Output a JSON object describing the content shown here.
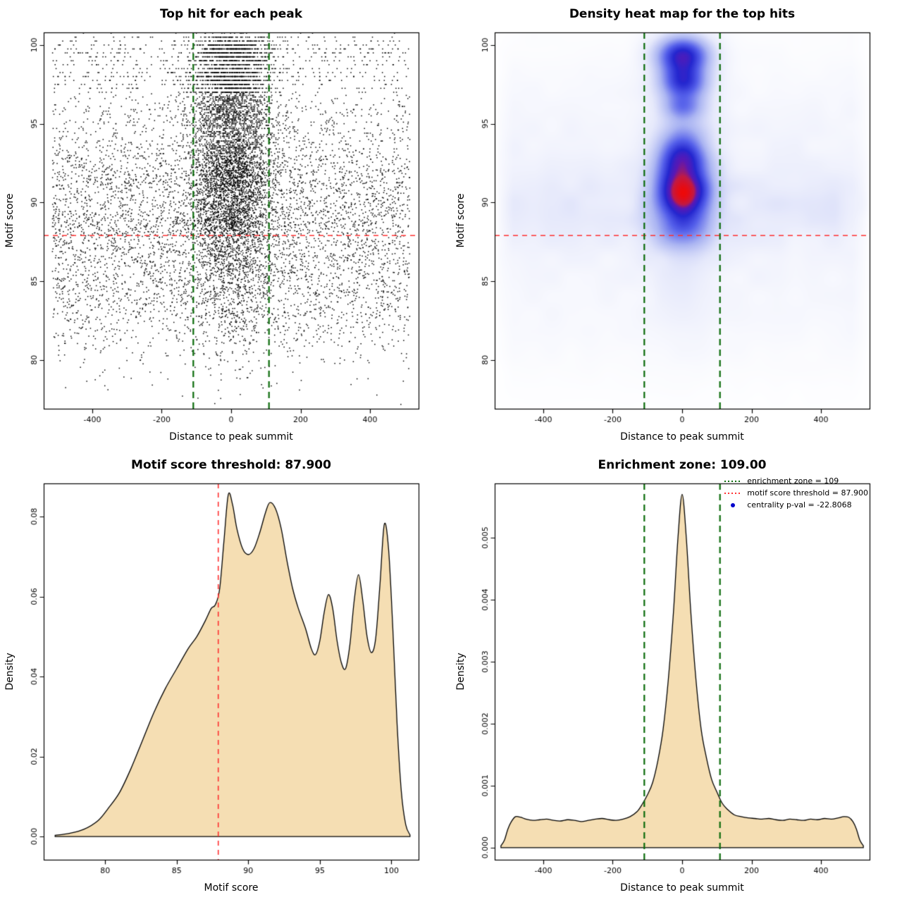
{
  "figure": {
    "background": "#ffffff"
  },
  "chart_data": [
    {
      "type": "scatter",
      "title": "Top hit for each peak",
      "xlabel": "Distance to peak summit",
      "ylabel": "Motif score",
      "xlim": [
        -540,
        540
      ],
      "ylim": [
        76.9,
        100.8
      ],
      "x_ticks": [
        -400,
        -200,
        0,
        200,
        400
      ],
      "x_tick_labels": [
        "-400",
        "-200",
        "0",
        "200",
        "400"
      ],
      "y_ticks": [
        80,
        85,
        90,
        95,
        100
      ],
      "y_tick_labels": [
        "80",
        "85",
        "90",
        "95",
        "100"
      ],
      "n_points": 12000,
      "seed": 1337,
      "point_color": "#000000",
      "point_size": 1.5,
      "central_sd": 58,
      "central_fraction": {
        "base": 0.18,
        "span": 0.55,
        "y_start": 84,
        "y_range": 12
      },
      "score_distribution_ref": 2,
      "threshold_line": {
        "y": 87.9,
        "color": "#ff3030",
        "dash": [
          7,
          6
        ],
        "width": 1.6
      },
      "zone_lines": {
        "x": [
          -109,
          109
        ],
        "color": "#0b6b0b",
        "dash": [
          9,
          6
        ],
        "width": 2.2
      }
    },
    {
      "type": "heatmap",
      "title": "Density heat map for the top hits",
      "xlabel": "Distance to peak summit",
      "ylabel": "Motif score",
      "xlim": [
        -540,
        540
      ],
      "ylim": [
        76.9,
        100.8
      ],
      "x_ticks": [
        -400,
        -200,
        0,
        200,
        400
      ],
      "x_tick_labels": [
        "-400",
        "-200",
        "0",
        "200",
        "400"
      ],
      "y_ticks": [
        80,
        85,
        90,
        95,
        100
      ],
      "y_tick_labels": [
        "80",
        "85",
        "90",
        "95",
        "100"
      ],
      "bands": [
        {
          "y": 90.6,
          "sy": 5.6,
          "w": 0.13
        },
        {
          "y": 89.6,
          "sy": 1.6,
          "w": 0.1
        },
        {
          "y": 82.5,
          "sy": 2.5,
          "w": 0.025
        }
      ],
      "column": {
        "x": 0,
        "sx": 65,
        "y": 92.5,
        "sy": 5.5,
        "w": 0.33
      },
      "blobs": [
        [
          0,
          99.4,
          52,
          0.8,
          1.35
        ],
        [
          2,
          97.7,
          46,
          0.75,
          1.05
        ],
        [
          0,
          96.1,
          40,
          0.55,
          0.55
        ],
        [
          -4,
          91.6,
          52,
          1.15,
          1.05
        ],
        [
          6,
          90.5,
          48,
          0.8,
          0.85
        ],
        [
          0,
          88.7,
          60,
          1.05,
          0.65
        ],
        [
          0,
          93.9,
          44,
          0.8,
          0.4
        ],
        [
          2,
          92.9,
          44,
          0.7,
          0.5
        ]
      ],
      "noise": {
        "seed": 7,
        "grid": 21,
        "amp": 0.6
      },
      "edge_fade": {
        "start": 537,
        "span": 50,
        "pow": 0.7
      },
      "gamma": 0.9,
      "colormap": [
        [
          0,
          "#ffffff"
        ],
        [
          0.14,
          "#e6e9fb"
        ],
        [
          0.33,
          "#aab4f2"
        ],
        [
          0.52,
          "#5560ea"
        ],
        [
          0.68,
          "#2426cf"
        ],
        [
          0.8,
          "#5a18b4"
        ],
        [
          0.875,
          "#c01a45"
        ],
        [
          1,
          "#ee0909"
        ]
      ],
      "threshold_line": {
        "y": 87.9,
        "color": "#ff3030",
        "dash": [
          7,
          6
        ],
        "width": 1.6
      },
      "zone_lines": {
        "x": [
          -109,
          109
        ],
        "color": "#0b6b0b",
        "dash": [
          9,
          6
        ],
        "width": 2.2
      }
    },
    {
      "type": "area",
      "title": "Motif score threshold: 87.900",
      "xlabel": "Motif score",
      "ylabel": "Density",
      "xlim": [
        75.7,
        101.9
      ],
      "ylim": [
        -0.0058,
        0.0883
      ],
      "x_ticks": [
        80,
        85,
        90,
        95,
        100
      ],
      "x_tick_labels": [
        "80",
        "85",
        "90",
        "95",
        "100"
      ],
      "y_ticks": [
        0,
        0.02,
        0.04,
        0.06,
        0.08
      ],
      "y_tick_labels": [
        "0.00",
        "0.02",
        "0.04",
        "0.06",
        "0.08"
      ],
      "fill": "#f5deb3",
      "stroke": "#000000",
      "x": [
        76.5,
        77.5,
        78.5,
        79.5,
        80.2,
        81,
        81.8,
        82.6,
        83.4,
        84.2,
        85,
        85.8,
        86.4,
        87,
        87.4,
        87.7,
        88,
        88.3,
        88.6,
        88.9,
        89.2,
        89.6,
        90,
        90.4,
        90.8,
        91.2,
        91.5,
        91.9,
        92.3,
        92.7,
        93.1,
        93.5,
        94,
        94.4,
        94.7,
        95,
        95.3,
        95.6,
        95.9,
        96.2,
        96.5,
        96.8,
        97.1,
        97.4,
        97.7,
        98,
        98.3,
        98.6,
        98.9,
        99.2,
        99.5,
        99.8,
        100.1,
        100.4,
        100.7,
        101,
        101.3
      ],
      "y": [
        0.0003,
        0.0008,
        0.0018,
        0.004,
        0.007,
        0.011,
        0.017,
        0.024,
        0.031,
        0.037,
        0.042,
        0.047,
        0.05,
        0.054,
        0.057,
        0.058,
        0.062,
        0.074,
        0.0855,
        0.083,
        0.077,
        0.072,
        0.0705,
        0.072,
        0.076,
        0.081,
        0.0835,
        0.082,
        0.077,
        0.069,
        0.062,
        0.057,
        0.052,
        0.047,
        0.0455,
        0.049,
        0.056,
        0.0605,
        0.057,
        0.049,
        0.0435,
        0.042,
        0.048,
        0.059,
        0.0655,
        0.059,
        0.05,
        0.046,
        0.0495,
        0.063,
        0.078,
        0.072,
        0.052,
        0.028,
        0.011,
        0.003,
        0.0004
      ],
      "threshold_line": {
        "x": 87.9,
        "color": "#ff3030",
        "dash": [
          7,
          6
        ],
        "width": 1.6
      }
    },
    {
      "type": "area",
      "title": "Enrichment zone: 109.00",
      "xlabel": "Distance to peak summit",
      "ylabel": "Density",
      "xlim": [
        -540,
        540
      ],
      "ylim": [
        -0.000195,
        0.005875
      ],
      "x_ticks": [
        -400,
        -200,
        0,
        200,
        400
      ],
      "x_tick_labels": [
        "-400",
        "-200",
        "0",
        "200",
        "400"
      ],
      "y_ticks": [
        0,
        0.001,
        0.002,
        0.003,
        0.004,
        0.005
      ],
      "y_tick_labels": [
        "0.000",
        "0.001",
        "0.002",
        "0.003",
        "0.004",
        "0.005"
      ],
      "fill": "#f5deb3",
      "stroke": "#000000",
      "x": [
        -522,
        -512,
        -502,
        -492,
        -480,
        -465,
        -450,
        -430,
        -410,
        -390,
        -370,
        -350,
        -330,
        -310,
        -290,
        -270,
        -250,
        -230,
        -210,
        -190,
        -170,
        -150,
        -130,
        -115,
        -100,
        -85,
        -70,
        -55,
        -40,
        -25,
        -12,
        0,
        12,
        25,
        40,
        55,
        70,
        85,
        100,
        115,
        130,
        150,
        170,
        190,
        210,
        230,
        250,
        270,
        290,
        310,
        330,
        350,
        370,
        390,
        410,
        430,
        450,
        465,
        480,
        492,
        502,
        512,
        522
      ],
      "y": [
        3e-05,
        0.00012,
        0.0003,
        0.00042,
        0.0005,
        0.00049,
        0.00046,
        0.00044,
        0.00045,
        0.00046,
        0.00044,
        0.00043,
        0.00045,
        0.00044,
        0.00042,
        0.00044,
        0.00046,
        0.00047,
        0.00045,
        0.00044,
        0.00046,
        0.0005,
        0.00058,
        0.0007,
        0.00085,
        0.00105,
        0.0014,
        0.0019,
        0.0027,
        0.0038,
        0.005,
        0.0057,
        0.005,
        0.0038,
        0.0027,
        0.0019,
        0.00145,
        0.0011,
        0.0009,
        0.00072,
        0.00062,
        0.00053,
        0.0005,
        0.00048,
        0.00047,
        0.00046,
        0.00047,
        0.00045,
        0.00044,
        0.00046,
        0.00045,
        0.00044,
        0.00046,
        0.00045,
        0.00047,
        0.00046,
        0.00048,
        0.0005,
        0.00049,
        0.00042,
        0.0003,
        0.00012,
        3e-05
      ],
      "zone_lines": {
        "x": [
          -109,
          109
        ],
        "color": "#0b6b0b",
        "dash": [
          9,
          6
        ],
        "width": 2.2
      },
      "legend": {
        "items": [
          {
            "label": "enrichment zone = 109",
            "marker": "line",
            "color": "#0b6b0b"
          },
          {
            "label": "motif score threshold = 87.900",
            "marker": "line",
            "color": "#ff3030"
          },
          {
            "label": "centrality p-val = -22.8068",
            "marker": "point",
            "color": "#0000cc"
          }
        ]
      }
    }
  ]
}
